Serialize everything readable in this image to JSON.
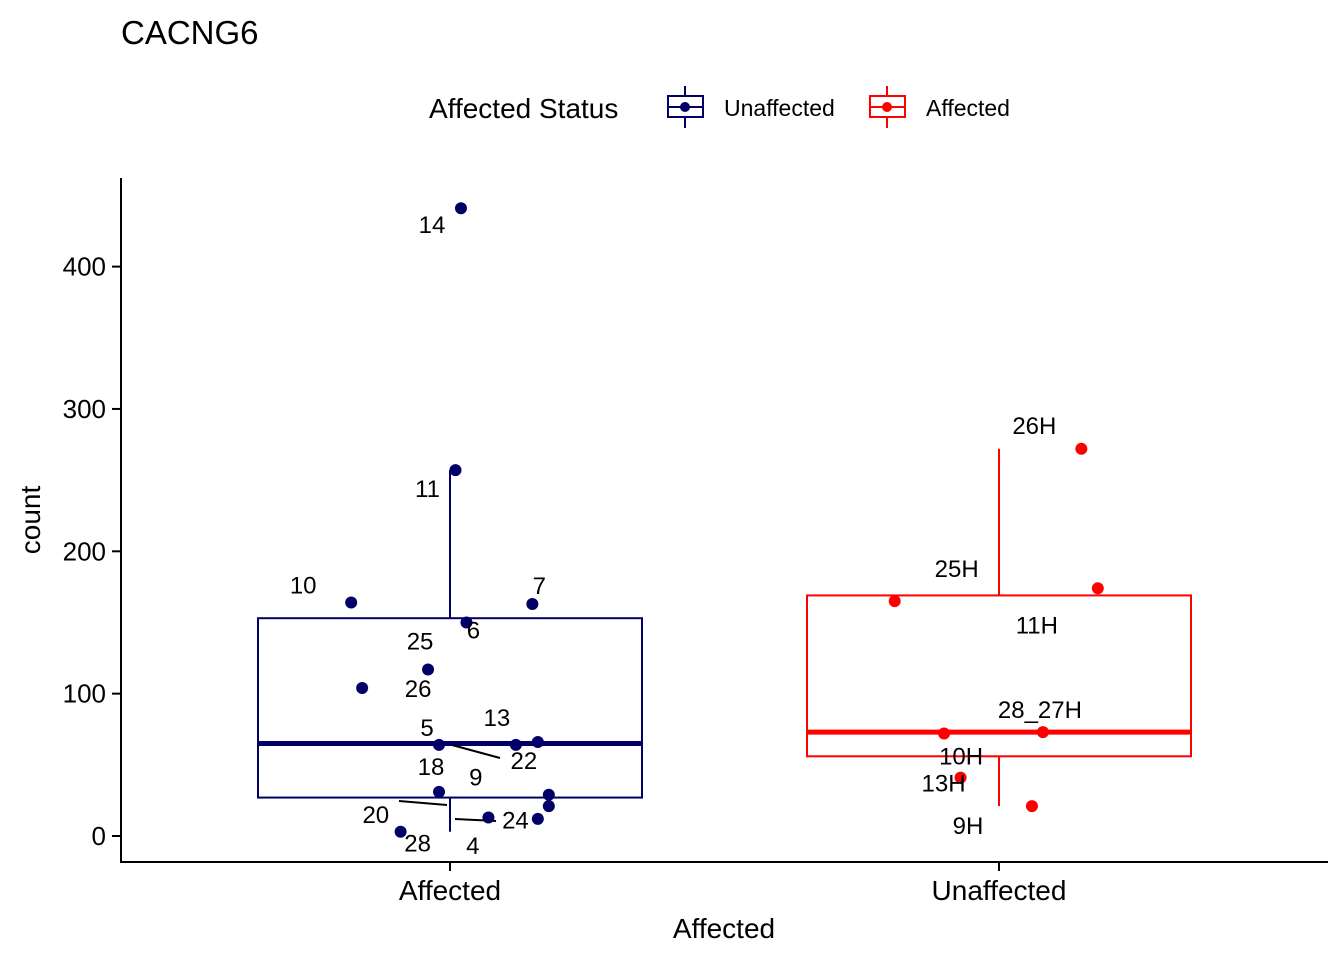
{
  "colors": {
    "unaffected": "#000066",
    "affected": "#ff0000"
  },
  "chart_data": {
    "type": "boxplot",
    "title": "CACNG6",
    "xlabel": "Affected",
    "ylabel": "count",
    "categories": [
      "Affected",
      "Unaffected"
    ],
    "ylim": [
      -18,
      462
    ],
    "yticks": [
      0,
      100,
      200,
      300,
      400
    ],
    "legend": {
      "title": "Affected Status",
      "position": "top",
      "entries": [
        {
          "label": "Unaffected",
          "color": "#000066"
        },
        {
          "label": "Affected",
          "color": "#ff0000"
        }
      ]
    },
    "boxes": [
      {
        "category": "Affected",
        "group": "Unaffected",
        "color": "#000066",
        "whisker_low": 3,
        "q1": 27,
        "median": 65,
        "q3": 153,
        "whisker_high": 257
      },
      {
        "category": "Unaffected",
        "group": "Affected",
        "color": "#ff0000",
        "whisker_low": 21,
        "q1": 56,
        "median": 73,
        "q3": 169,
        "whisker_high": 272
      }
    ],
    "points": [
      {
        "category": "Affected",
        "jitter": 0.02,
        "y": 441,
        "label": "14"
      },
      {
        "category": "Affected",
        "jitter": 0.01,
        "y": 257,
        "label": "11"
      },
      {
        "category": "Affected",
        "jitter": -0.18,
        "y": 164,
        "label": "10"
      },
      {
        "category": "Affected",
        "jitter": 0.15,
        "y": 163,
        "label": "7"
      },
      {
        "category": "Affected",
        "jitter": 0.03,
        "y": 150,
        "label": "6"
      },
      {
        "category": "Affected",
        "jitter": -0.04,
        "y": 117,
        "label": "25"
      },
      {
        "category": "Affected",
        "jitter": -0.16,
        "y": 104,
        "label": "26"
      },
      {
        "category": "Affected",
        "jitter": 0.16,
        "y": 66,
        "label": "13"
      },
      {
        "category": "Affected",
        "jitter": -0.02,
        "y": 64,
        "label": "5"
      },
      {
        "category": "Affected",
        "jitter": 0.12,
        "y": 64,
        "label": "22"
      },
      {
        "category": "Affected",
        "jitter": -0.02,
        "y": 31,
        "label": "18"
      },
      {
        "category": "Affected",
        "jitter": 0.18,
        "y": 29,
        "label": "9"
      },
      {
        "category": "Affected",
        "jitter": 0.18,
        "y": 21,
        "label": "20"
      },
      {
        "category": "Affected",
        "jitter": 0.07,
        "y": 13,
        "label": "24"
      },
      {
        "category": "Affected",
        "jitter": 0.16,
        "y": 12,
        "label": "4"
      },
      {
        "category": "Affected",
        "jitter": -0.09,
        "y": 3,
        "label": "28"
      },
      {
        "category": "Unaffected",
        "jitter": 0.15,
        "y": 272,
        "label": "26H"
      },
      {
        "category": "Unaffected",
        "jitter": 0.18,
        "y": 174,
        "label": "11H"
      },
      {
        "category": "Unaffected",
        "jitter": -0.19,
        "y": 165,
        "label": "25H"
      },
      {
        "category": "Unaffected",
        "jitter": 0.08,
        "y": 73,
        "label": "28_27H"
      },
      {
        "category": "Unaffected",
        "jitter": -0.1,
        "y": 72,
        "label": "10H"
      },
      {
        "category": "Unaffected",
        "jitter": -0.07,
        "y": 41,
        "label": "13H"
      },
      {
        "category": "Unaffected",
        "jitter": 0.06,
        "y": 21,
        "label": "9H"
      }
    ]
  }
}
